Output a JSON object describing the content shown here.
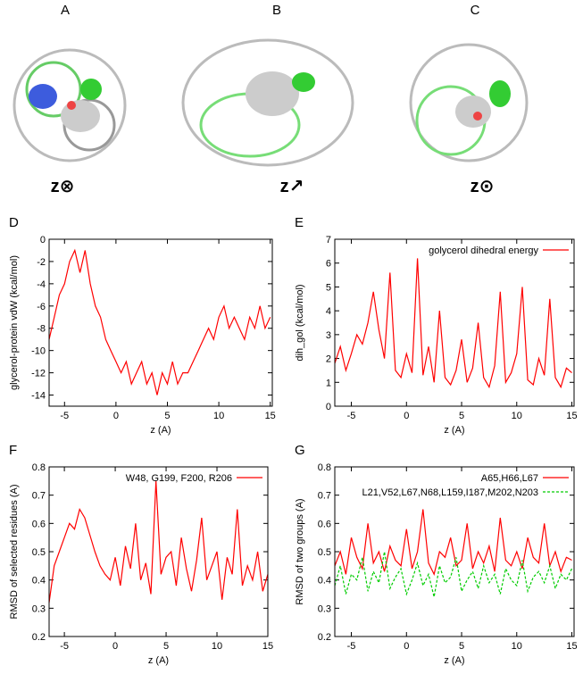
{
  "structure_panels": [
    {
      "label": "A",
      "axis": "z⊗"
    },
    {
      "label": "B",
      "axis": "z↗"
    },
    {
      "label": "C",
      "axis": "z⊙"
    }
  ],
  "chart_data": [
    {
      "type": "line",
      "label": "D",
      "xlabel": "z (A)",
      "ylabel": "glycerol-protein vdW (kcal/mol)",
      "x": [
        -6.5,
        -6,
        -5.5,
        -5,
        -4.5,
        -4,
        -3.5,
        -3,
        -2.5,
        -2,
        -1.5,
        -1,
        -0.5,
        0,
        0.5,
        1,
        1.5,
        2,
        2.5,
        3,
        3.5,
        4,
        4.5,
        5,
        5.5,
        6,
        6.5,
        7,
        7.5,
        8,
        8.5,
        9,
        9.5,
        10,
        10.5,
        11,
        11.5,
        12,
        12.5,
        13,
        13.5,
        14,
        14.5,
        15
      ],
      "series": [
        {
          "name": null,
          "color": "#ff0000",
          "dash": false,
          "values": [
            -9,
            -7,
            -5,
            -4,
            -2,
            -1,
            -3,
            -1,
            -4,
            -6,
            -7,
            -9,
            -10,
            -11,
            -12,
            -11,
            -13,
            -12,
            -11,
            -13,
            -12,
            -14,
            -12,
            -13,
            -11,
            -13,
            -12,
            -12,
            -11,
            -10,
            -9,
            -8,
            -9,
            -7,
            -6,
            -8,
            -7,
            -8,
            -9,
            -7,
            -8,
            -6,
            -8,
            -7
          ]
        }
      ],
      "xlim": [
        -6.5,
        15.2
      ],
      "xticks": [
        -5,
        0,
        5,
        10,
        15
      ],
      "ylim": [
        -15,
        0
      ],
      "yticks": [
        -14,
        -12,
        -10,
        -8,
        -6,
        -4,
        -2,
        0
      ]
    },
    {
      "type": "line",
      "label": "E",
      "xlabel": "z (A)",
      "ylabel": "dih_gol (kcal/mol)",
      "x": [
        -6.5,
        -6,
        -5.5,
        -5,
        -4.5,
        -4,
        -3.5,
        -3,
        -2.5,
        -2,
        -1.5,
        -1,
        -0.5,
        0,
        0.5,
        1,
        1.5,
        2,
        2.5,
        3,
        3.5,
        4,
        4.5,
        5,
        5.5,
        6,
        6.5,
        7,
        7.5,
        8,
        8.5,
        9,
        9.5,
        10,
        10.5,
        11,
        11.5,
        12,
        12.5,
        13,
        13.5,
        14,
        14.5,
        15
      ],
      "series": [
        {
          "name": "golycerol dihedral energy",
          "color": "#ff0000",
          "dash": false,
          "values": [
            1.8,
            2.5,
            1.5,
            2.2,
            3.0,
            2.6,
            3.5,
            4.8,
            3.2,
            2.0,
            5.6,
            1.5,
            1.2,
            2.2,
            1.4,
            6.2,
            1.3,
            2.5,
            1.0,
            4.0,
            1.2,
            0.9,
            1.5,
            2.8,
            1.0,
            1.6,
            3.5,
            1.2,
            0.8,
            1.7,
            4.8,
            1.0,
            1.4,
            2.2,
            5.0,
            1.1,
            0.9,
            2.0,
            1.3,
            4.5,
            1.2,
            0.8,
            1.6,
            1.4
          ]
        }
      ],
      "xlim": [
        -6.5,
        15.2
      ],
      "xticks": [
        -5,
        0,
        5,
        10,
        15
      ],
      "ylim": [
        0,
        7
      ],
      "yticks": [
        0,
        1,
        2,
        3,
        4,
        5,
        6,
        7
      ]
    },
    {
      "type": "line",
      "label": "F",
      "xlabel": "z (A)",
      "ylabel": "RMSD of selected residues (A)",
      "x": [
        -6.5,
        -6,
        -5.5,
        -5,
        -4.5,
        -4,
        -3.5,
        -3,
        -2.5,
        -2,
        -1.5,
        -1,
        -0.5,
        0,
        0.5,
        1,
        1.5,
        2,
        2.5,
        3,
        3.5,
        4,
        4.5,
        5,
        5.5,
        6,
        6.5,
        7,
        7.5,
        8,
        8.5,
        9,
        9.5,
        10,
        10.5,
        11,
        11.5,
        12,
        12.5,
        13,
        13.5,
        14,
        14.5,
        15
      ],
      "series": [
        {
          "name": "W48, G199, F200, R206",
          "color": "#ff0000",
          "dash": false,
          "values": [
            0.32,
            0.45,
            0.5,
            0.55,
            0.6,
            0.58,
            0.65,
            0.62,
            0.56,
            0.5,
            0.45,
            0.42,
            0.4,
            0.48,
            0.38,
            0.52,
            0.44,
            0.6,
            0.4,
            0.46,
            0.35,
            0.75,
            0.42,
            0.48,
            0.5,
            0.38,
            0.55,
            0.44,
            0.36,
            0.47,
            0.62,
            0.4,
            0.45,
            0.5,
            0.33,
            0.48,
            0.42,
            0.65,
            0.38,
            0.45,
            0.4,
            0.5,
            0.36,
            0.42
          ]
        }
      ],
      "xlim": [
        -6.5,
        15
      ],
      "xticks": [
        -5,
        0,
        5,
        10,
        15
      ],
      "ylim": [
        0.2,
        0.8
      ],
      "yticks": [
        0.2,
        0.3,
        0.4,
        0.5,
        0.6,
        0.7,
        0.8
      ]
    },
    {
      "type": "line",
      "label": "G",
      "xlabel": "z (A)",
      "ylabel": "RMSD of two groups (A)",
      "x": [
        -6.5,
        -6,
        -5.5,
        -5,
        -4.5,
        -4,
        -3.5,
        -3,
        -2.5,
        -2,
        -1.5,
        -1,
        -0.5,
        0,
        0.5,
        1,
        1.5,
        2,
        2.5,
        3,
        3.5,
        4,
        4.5,
        5,
        5.5,
        6,
        6.5,
        7,
        7.5,
        8,
        8.5,
        9,
        9.5,
        10,
        10.5,
        11,
        11.5,
        12,
        12.5,
        13,
        13.5,
        14,
        14.5,
        15
      ],
      "series": [
        {
          "name": "A65,H66,L67",
          "color": "#ff0000",
          "dash": false,
          "values": [
            0.45,
            0.5,
            0.42,
            0.55,
            0.48,
            0.44,
            0.6,
            0.46,
            0.5,
            0.43,
            0.52,
            0.47,
            0.45,
            0.58,
            0.44,
            0.5,
            0.65,
            0.46,
            0.42,
            0.5,
            0.48,
            0.55,
            0.45,
            0.47,
            0.6,
            0.44,
            0.5,
            0.46,
            0.52,
            0.43,
            0.62,
            0.47,
            0.45,
            0.5,
            0.44,
            0.55,
            0.48,
            0.46,
            0.6,
            0.45,
            0.5,
            0.43,
            0.48,
            0.47
          ]
        },
        {
          "name": "L21,V52,L67,N68,L159,I187,M202,N203",
          "color": "#00cc00",
          "dash": true,
          "values": [
            0.38,
            0.45,
            0.35,
            0.42,
            0.4,
            0.48,
            0.36,
            0.43,
            0.39,
            0.5,
            0.37,
            0.41,
            0.44,
            0.35,
            0.4,
            0.46,
            0.38,
            0.42,
            0.34,
            0.45,
            0.39,
            0.41,
            0.48,
            0.36,
            0.4,
            0.43,
            0.37,
            0.45,
            0.39,
            0.42,
            0.35,
            0.44,
            0.4,
            0.38,
            0.47,
            0.36,
            0.41,
            0.43,
            0.39,
            0.45,
            0.37,
            0.42,
            0.4,
            0.44
          ]
        }
      ],
      "xlim": [
        -6.5,
        15.2
      ],
      "xticks": [
        -5,
        0,
        5,
        10,
        15
      ],
      "ylim": [
        0.2,
        0.8
      ],
      "yticks": [
        0.2,
        0.3,
        0.4,
        0.5,
        0.6,
        0.7,
        0.8
      ]
    }
  ]
}
